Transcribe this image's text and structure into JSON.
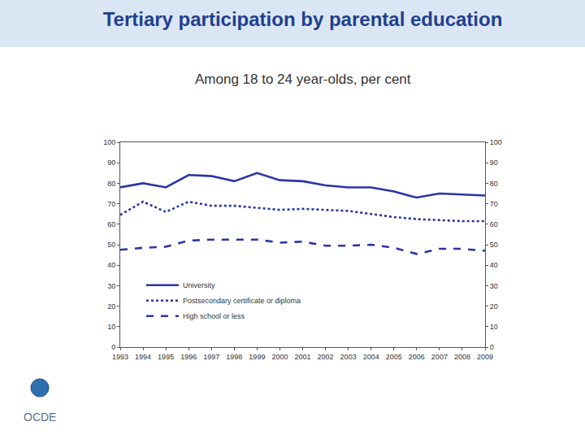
{
  "chart_data": {
    "type": "line",
    "title": "Tertiary participation by parental education",
    "subtitle": "Among 18 to 24 year-olds, per cent",
    "logo_text": "OCDE",
    "x": [
      1993,
      1994,
      1995,
      1996,
      1997,
      1998,
      1999,
      2000,
      2001,
      2002,
      2003,
      2004,
      2005,
      2006,
      2007,
      2008,
      2009
    ],
    "series": [
      {
        "name": "University",
        "color": "#2a35a8",
        "line_style": "solid",
        "values": [
          78,
          80,
          78,
          84,
          83.5,
          81,
          85,
          81.5,
          81,
          79,
          78,
          78,
          76,
          73,
          75,
          74.5,
          74
        ]
      },
      {
        "name": "Postsecondary certificate or diploma",
        "color": "#2a35a8",
        "line_style": "dot",
        "values": [
          64.5,
          71,
          66,
          71,
          69,
          69,
          68,
          67,
          67.5,
          67,
          66.5,
          65,
          63.5,
          62.5,
          62,
          61.5,
          61.5
        ]
      },
      {
        "name": "High school or less",
        "color": "#2a35a8",
        "line_style": "dash",
        "values": [
          47.5,
          48.5,
          49,
          52,
          52.5,
          52.5,
          52.5,
          51,
          51.5,
          49.5,
          49.5,
          50,
          48.5,
          45.5,
          48,
          48,
          47
        ]
      }
    ],
    "xlim": [
      1993,
      2009
    ],
    "xticks": [
      1993,
      1994,
      1995,
      1996,
      1997,
      1998,
      1999,
      2000,
      2001,
      2002,
      2003,
      2004,
      2005,
      2006,
      2007,
      2008,
      2009
    ],
    "ylim": [
      0,
      100
    ],
    "yticks": [
      0,
      10,
      20,
      30,
      40,
      50,
      60,
      70,
      80,
      90,
      100
    ],
    "y2lim": [
      0,
      100
    ],
    "y2ticks": [
      0,
      10,
      20,
      30,
      40,
      50,
      60,
      70,
      80,
      90,
      100
    ],
    "grid": false,
    "legend": "lower left"
  }
}
